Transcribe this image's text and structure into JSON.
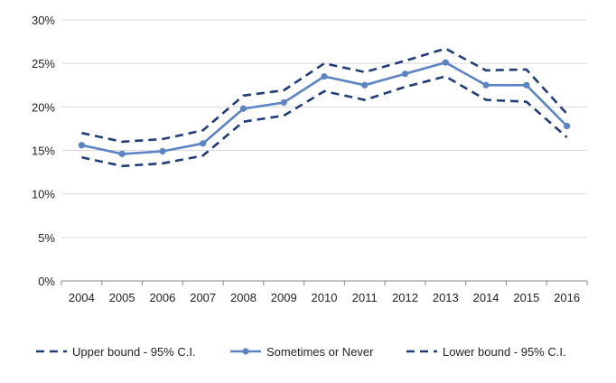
{
  "chart_data": {
    "type": "line",
    "title": "",
    "xlabel": "",
    "ylabel": "",
    "x": [
      "2004",
      "2005",
      "2006",
      "2007",
      "2008",
      "2009",
      "2010",
      "2011",
      "2012",
      "2013",
      "2014",
      "2015",
      "2016"
    ],
    "ylim": [
      0,
      30
    ],
    "yticks": [
      "0%",
      "5%",
      "10%",
      "15%",
      "20%",
      "25%",
      "30%"
    ],
    "ytick_values": [
      0,
      5,
      10,
      15,
      20,
      25,
      30
    ],
    "grid": "horizontal",
    "legend": "bottom",
    "series": [
      {
        "name": "Upper bound - 95% C.I.",
        "style": "dashed",
        "color": "#1f3d7a",
        "values": [
          17.0,
          16.0,
          16.3,
          17.3,
          21.3,
          21.9,
          25.0,
          24.0,
          25.3,
          26.7,
          24.2,
          24.3,
          19.2
        ]
      },
      {
        "name": "Sometimes or Never",
        "style": "solid-markers",
        "color": "#5b84c4",
        "values": [
          15.6,
          14.6,
          14.9,
          15.8,
          19.8,
          20.5,
          23.5,
          22.5,
          23.8,
          25.1,
          22.5,
          22.5,
          17.8
        ]
      },
      {
        "name": "Lower bound - 95% C.I.",
        "style": "dashed",
        "color": "#1f3d7a",
        "values": [
          14.2,
          13.2,
          13.5,
          14.4,
          18.3,
          19.0,
          21.8,
          20.8,
          22.3,
          23.5,
          20.8,
          20.6,
          16.5
        ]
      }
    ]
  },
  "colors": {
    "grid": "#d9d9d9",
    "axis": "#888888"
  }
}
